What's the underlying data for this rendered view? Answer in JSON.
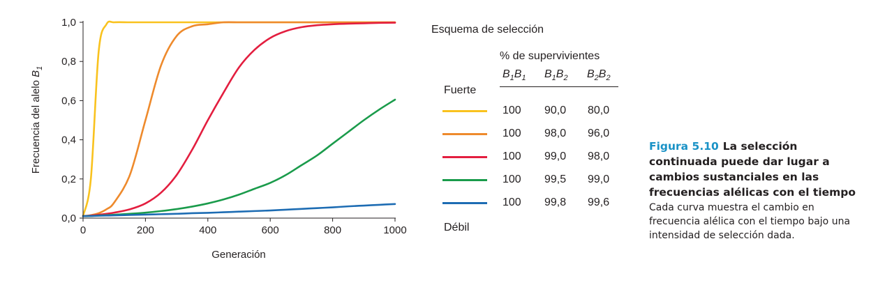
{
  "chart_data": {
    "type": "line",
    "xlabel": "Generación",
    "ylabel": "Frecuencia del alelo ",
    "ylabel_allele": "B",
    "ylabel_allele_sub": "1",
    "xlim": [
      0,
      1000
    ],
    "ylim": [
      0,
      1
    ],
    "xticks": [
      0,
      200,
      400,
      600,
      800,
      1000
    ],
    "xtick_labels": [
      "0",
      "200",
      "400",
      "600",
      "800",
      "1000"
    ],
    "yticks": [
      0,
      0.2,
      0.4,
      0.6,
      0.8,
      1
    ],
    "ytick_labels": [
      "0,0",
      "0,2",
      "0,4",
      "0,6",
      "0,8",
      "1,0"
    ],
    "x": [
      0,
      25,
      50,
      75,
      100,
      150,
      200,
      250,
      300,
      350,
      400,
      450,
      500,
      550,
      600,
      650,
      700,
      750,
      800,
      850,
      900,
      950,
      1000
    ],
    "series": [
      {
        "color": "#f9c21e",
        "values": [
          0.01,
          0.2,
          0.85,
          0.99,
          1.0,
          1.0,
          1.0,
          1.0,
          1.0,
          1.0,
          1.0,
          1.0,
          1.0,
          1.0,
          1.0,
          1.0,
          1.0,
          1.0,
          1.0,
          1.0,
          1.0,
          1.0,
          1.0
        ]
      },
      {
        "color": "#ee8a2c",
        "values": [
          0.01,
          0.015,
          0.025,
          0.045,
          0.08,
          0.22,
          0.5,
          0.78,
          0.93,
          0.98,
          0.99,
          1.0,
          1.0,
          1.0,
          1.0,
          1.0,
          1.0,
          1.0,
          1.0,
          1.0,
          1.0,
          1.0,
          1.0
        ]
      },
      {
        "color": "#e31e3f",
        "values": [
          0.01,
          0.013,
          0.017,
          0.022,
          0.028,
          0.045,
          0.075,
          0.13,
          0.22,
          0.35,
          0.5,
          0.64,
          0.77,
          0.86,
          0.92,
          0.955,
          0.975,
          0.985,
          0.99,
          0.993,
          0.995,
          0.997,
          0.998
        ]
      },
      {
        "color": "#1a9b4b",
        "values": [
          0.01,
          0.011,
          0.013,
          0.015,
          0.017,
          0.022,
          0.028,
          0.036,
          0.046,
          0.059,
          0.075,
          0.095,
          0.12,
          0.15,
          0.18,
          0.22,
          0.27,
          0.32,
          0.38,
          0.44,
          0.5,
          0.555,
          0.605
        ]
      },
      {
        "color": "#1d6cb3",
        "values": [
          0.01,
          0.011,
          0.012,
          0.013,
          0.014,
          0.016,
          0.018,
          0.02,
          0.022,
          0.025,
          0.027,
          0.03,
          0.033,
          0.036,
          0.039,
          0.043,
          0.047,
          0.051,
          0.055,
          0.06,
          0.064,
          0.068,
          0.072
        ]
      }
    ]
  },
  "legend": {
    "title": "Esquema de selección",
    "subtitle": "% de supervivientes",
    "columns": [
      {
        "allele1": "B",
        "sub1": "1",
        "allele2": "B",
        "sub2": "1"
      },
      {
        "allele1": "B",
        "sub1": "1",
        "allele2": "B",
        "sub2": "2"
      },
      {
        "allele1": "B",
        "sub1": "2",
        "allele2": "B",
        "sub2": "2"
      }
    ],
    "strong_label": "Fuerte",
    "weak_label": "Débil",
    "rows": [
      {
        "color": "#f9c21e",
        "values": [
          "100",
          "90,0",
          "80,0"
        ]
      },
      {
        "color": "#ee8a2c",
        "values": [
          "100",
          "98,0",
          "96,0"
        ]
      },
      {
        "color": "#e31e3f",
        "values": [
          "100",
          "99,0",
          "98,0"
        ]
      },
      {
        "color": "#1a9b4b",
        "values": [
          "100",
          "99,5",
          "99,0"
        ]
      },
      {
        "color": "#1d6cb3",
        "values": [
          "100",
          "99,8",
          "99,6"
        ]
      }
    ]
  },
  "caption": {
    "figure_number": "Figura 5.10",
    "title": "La selección continuada puede dar lugar a cambios sustanciales en las frecuencias alélicas con el tiempo",
    "body": "Cada curva muestra el cambio en frecuencia alélica con el tiempo bajo una intensidad de selección dada."
  }
}
